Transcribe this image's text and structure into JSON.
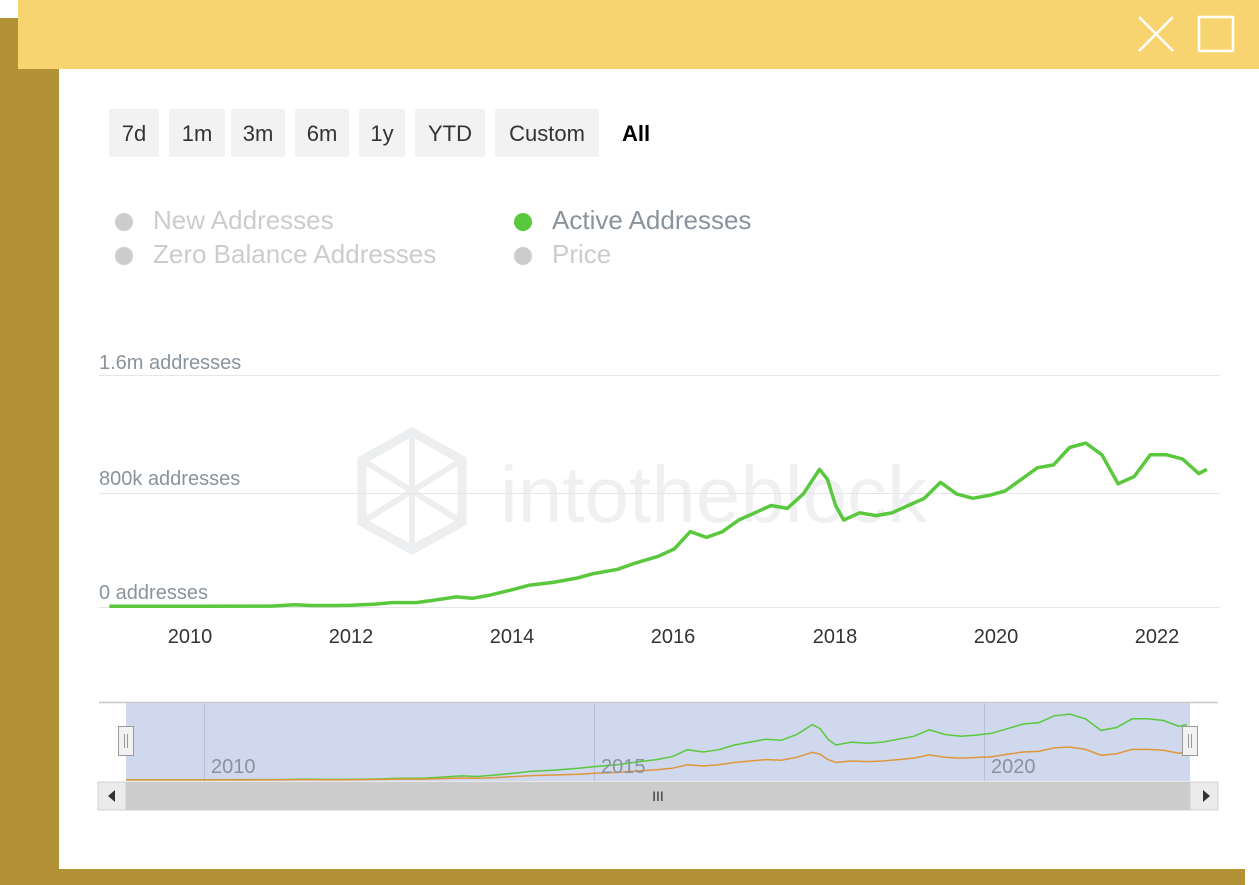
{
  "range_selector": {
    "buttons": [
      {
        "label": "7d",
        "active": false
      },
      {
        "label": "1m",
        "active": false
      },
      {
        "label": "3m",
        "active": false
      },
      {
        "label": "6m",
        "active": false
      },
      {
        "label": "1y",
        "active": false
      },
      {
        "label": "YTD",
        "active": false
      },
      {
        "label": "Custom",
        "active": false
      },
      {
        "label": "All",
        "active": true
      }
    ]
  },
  "legend": {
    "items": [
      {
        "label": "New Addresses",
        "enabled": false,
        "color": "#cccccc"
      },
      {
        "label": "Active Addresses",
        "enabled": true,
        "color": "#5ac83c"
      },
      {
        "label": "Zero Balance Addresses",
        "enabled": false,
        "color": "#cccccc"
      },
      {
        "label": "Price",
        "enabled": false,
        "color": "#cccccc"
      }
    ]
  },
  "watermark": "intotheblock",
  "navigator": {
    "tick_labels": [
      "2010",
      "2015",
      "2020"
    ],
    "scrollbar_grip": "III"
  },
  "chart_data": {
    "type": "line",
    "title": "",
    "xlabel": "",
    "ylabel": "",
    "x_ticks": [
      "2010",
      "2012",
      "2014",
      "2016",
      "2018",
      "2020",
      "2022"
    ],
    "y_ticks": [
      "0 addresses",
      "800k addresses",
      "1.6m addresses"
    ],
    "ylim": [
      0,
      1600000
    ],
    "xlim": [
      2009.0,
      2022.8
    ],
    "grid": true,
    "legend_position": "top-left",
    "series": [
      {
        "name": "Active Addresses",
        "color": "#5ac83c",
        "x": [
          2009.0,
          2010.0,
          2011.0,
          2011.3,
          2011.5,
          2011.8,
          2012.0,
          2012.3,
          2012.5,
          2012.8,
          2013.0,
          2013.3,
          2013.5,
          2013.7,
          2014.0,
          2014.2,
          2014.5,
          2014.8,
          2015.0,
          2015.3,
          2015.5,
          2015.8,
          2016.0,
          2016.2,
          2016.4,
          2016.6,
          2016.8,
          2017.0,
          2017.2,
          2017.4,
          2017.6,
          2017.8,
          2017.9,
          2018.0,
          2018.1,
          2018.3,
          2018.5,
          2018.7,
          2018.9,
          2019.1,
          2019.3,
          2019.5,
          2019.7,
          2019.9,
          2020.1,
          2020.3,
          2020.5,
          2020.7,
          2020.9,
          2021.1,
          2021.3,
          2021.5,
          2021.7,
          2021.9,
          2022.1,
          2022.3,
          2022.5,
          2022.6
        ],
        "values": [
          5000,
          5000,
          6000,
          15000,
          10000,
          10000,
          12000,
          20000,
          30000,
          30000,
          45000,
          70000,
          60000,
          80000,
          120000,
          150000,
          170000,
          200000,
          230000,
          260000,
          300000,
          350000,
          400000,
          520000,
          480000,
          520000,
          600000,
          650000,
          700000,
          680000,
          780000,
          950000,
          880000,
          700000,
          600000,
          650000,
          630000,
          650000,
          700000,
          750000,
          860000,
          780000,
          750000,
          770000,
          800000,
          880000,
          960000,
          980000,
          1100000,
          1130000,
          1050000,
          850000,
          900000,
          1050000,
          1050000,
          1020000,
          920000,
          950000
        ]
      }
    ]
  }
}
